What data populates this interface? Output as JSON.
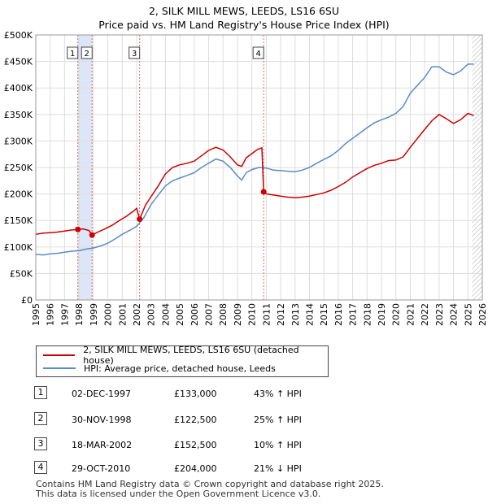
{
  "title_line1": "2, SILK MILL MEWS, LEEDS, LS16 6SU",
  "title_line2": "Price paid vs. HM Land Registry's House Price Index (HPI)",
  "colors": {
    "property": "#cc0000",
    "hpi": "#5b8ac8",
    "sale_band": "#dde6f7",
    "grid": "#dddddd",
    "hatch": "#aaaaaa"
  },
  "chart_data": {
    "type": "line",
    "ylabel": "",
    "xlabel": "",
    "xlim": [
      1995,
      2026
    ],
    "ylim": [
      0,
      500000
    ],
    "yticks": [
      0,
      50000,
      100000,
      150000,
      200000,
      250000,
      300000,
      350000,
      400000,
      450000,
      500000
    ],
    "ytick_labels": [
      "£0",
      "£50K",
      "£100K",
      "£150K",
      "£200K",
      "£250K",
      "£300K",
      "£350K",
      "£400K",
      "£450K",
      "£500K"
    ],
    "xticks": [
      "1995",
      "1996",
      "1997",
      "1998",
      "1999",
      "2000",
      "2001",
      "2002",
      "2003",
      "2004",
      "2005",
      "2006",
      "2007",
      "2008",
      "2009",
      "2010",
      "2011",
      "2012",
      "2013",
      "2014",
      "2015",
      "2016",
      "2017",
      "2018",
      "2019",
      "2020",
      "2021",
      "2022",
      "2023",
      "2024",
      "2025",
      "2026"
    ],
    "hatch_from": 2025.3,
    "series": [
      {
        "name": "2, SILK MILL MEWS, LEEDS, LS16 6SU (detached house)",
        "x": [
          1995.0,
          1995.5,
          1996.0,
          1996.5,
          1997.0,
          1997.5,
          1997.92,
          1998.3,
          1998.7,
          1998.91,
          1999.3,
          1999.8,
          2000.3,
          2000.8,
          2001.3,
          2001.8,
          2002.0,
          2002.21,
          2002.6,
          2003.0,
          2003.5,
          2004.0,
          2004.5,
          2005.0,
          2005.5,
          2006.0,
          2006.5,
          2007.0,
          2007.5,
          2008.0,
          2008.5,
          2009.0,
          2009.3,
          2009.6,
          2010.0,
          2010.4,
          2010.7,
          2010.82,
          2011.0,
          2011.5,
          2012.0,
          2012.5,
          2013.0,
          2013.5,
          2014.0,
          2014.5,
          2015.0,
          2015.5,
          2016.0,
          2016.5,
          2017.0,
          2017.5,
          2018.0,
          2018.5,
          2019.0,
          2019.5,
          2020.0,
          2020.5,
          2021.0,
          2021.5,
          2022.0,
          2022.5,
          2023.0,
          2023.5,
          2024.0,
          2024.5,
          2025.0,
          2025.4
        ],
        "y": [
          124000,
          126000,
          127000,
          128000,
          130000,
          132000,
          133000,
          134000,
          131000,
          122500,
          128000,
          134000,
          141000,
          150000,
          158000,
          168000,
          173000,
          152500,
          178000,
          195000,
          215000,
          238000,
          250000,
          255000,
          258000,
          262000,
          272000,
          282000,
          288000,
          283000,
          270000,
          255000,
          252000,
          268000,
          276000,
          284000,
          287000,
          204000,
          200000,
          198000,
          196000,
          194000,
          193000,
          194000,
          196000,
          199000,
          202000,
          207000,
          214000,
          222000,
          232000,
          240000,
          248000,
          254000,
          258000,
          263000,
          264000,
          270000,
          288000,
          305000,
          322000,
          338000,
          350000,
          342000,
          333000,
          340000,
          352000,
          348000
        ]
      },
      {
        "name": "HPI: Average price, detached house, Leeds",
        "x": [
          1995.0,
          1995.5,
          1996.0,
          1996.5,
          1997.0,
          1997.5,
          1998.0,
          1998.5,
          1999.0,
          1999.5,
          2000.0,
          2000.5,
          2001.0,
          2001.5,
          2002.0,
          2002.5,
          2003.0,
          2003.5,
          2004.0,
          2004.5,
          2005.0,
          2005.5,
          2006.0,
          2006.5,
          2007.0,
          2007.5,
          2008.0,
          2008.5,
          2009.0,
          2009.3,
          2009.6,
          2010.0,
          2010.5,
          2011.0,
          2011.5,
          2012.0,
          2012.5,
          2013.0,
          2013.5,
          2014.0,
          2014.5,
          2015.0,
          2015.5,
          2016.0,
          2016.5,
          2017.0,
          2017.5,
          2018.0,
          2018.5,
          2019.0,
          2019.5,
          2020.0,
          2020.5,
          2021.0,
          2021.5,
          2022.0,
          2022.5,
          2023.0,
          2023.5,
          2024.0,
          2024.5,
          2025.0,
          2025.4
        ],
        "y": [
          86000,
          85000,
          87000,
          88000,
          90000,
          92000,
          93000,
          96000,
          98000,
          102000,
          107000,
          115000,
          124000,
          131000,
          139000,
          155000,
          180000,
          198000,
          215000,
          225000,
          230000,
          235000,
          240000,
          250000,
          258000,
          266000,
          262000,
          250000,
          234000,
          226000,
          240000,
          246000,
          250000,
          249000,
          245000,
          244000,
          243000,
          242000,
          245000,
          250000,
          258000,
          265000,
          272000,
          282000,
          295000,
          305000,
          315000,
          325000,
          334000,
          340000,
          345000,
          352000,
          365000,
          390000,
          405000,
          420000,
          440000,
          440000,
          430000,
          425000,
          432000,
          445000,
          445000
        ]
      }
    ],
    "markers": [
      {
        "label": "1",
        "x": 1997.92,
        "y": 133000
      },
      {
        "label": "2",
        "x": 1998.91,
        "y": 122500
      },
      {
        "label": "3",
        "x": 2002.21,
        "y": 152500
      },
      {
        "label": "4",
        "x": 2010.82,
        "y": 204000
      }
    ],
    "sale_bands": [
      [
        1997.92,
        1998.91
      ]
    ]
  },
  "sales": [
    {
      "num": "1",
      "date": "02-DEC-1997",
      "price": "£133,000",
      "hpi": "43% ↑ HPI"
    },
    {
      "num": "2",
      "date": "30-NOV-1998",
      "price": "£122,500",
      "hpi": "25% ↑ HPI"
    },
    {
      "num": "3",
      "date": "18-MAR-2002",
      "price": "£152,500",
      "hpi": "10% ↑ HPI"
    },
    {
      "num": "4",
      "date": "29-OCT-2010",
      "price": "£204,000",
      "hpi": "21% ↓ HPI"
    }
  ],
  "footer_line1": "Contains HM Land Registry data © Crown copyright and database right 2025.",
  "footer_line2": "This data is licensed under the Open Government Licence v3.0."
}
